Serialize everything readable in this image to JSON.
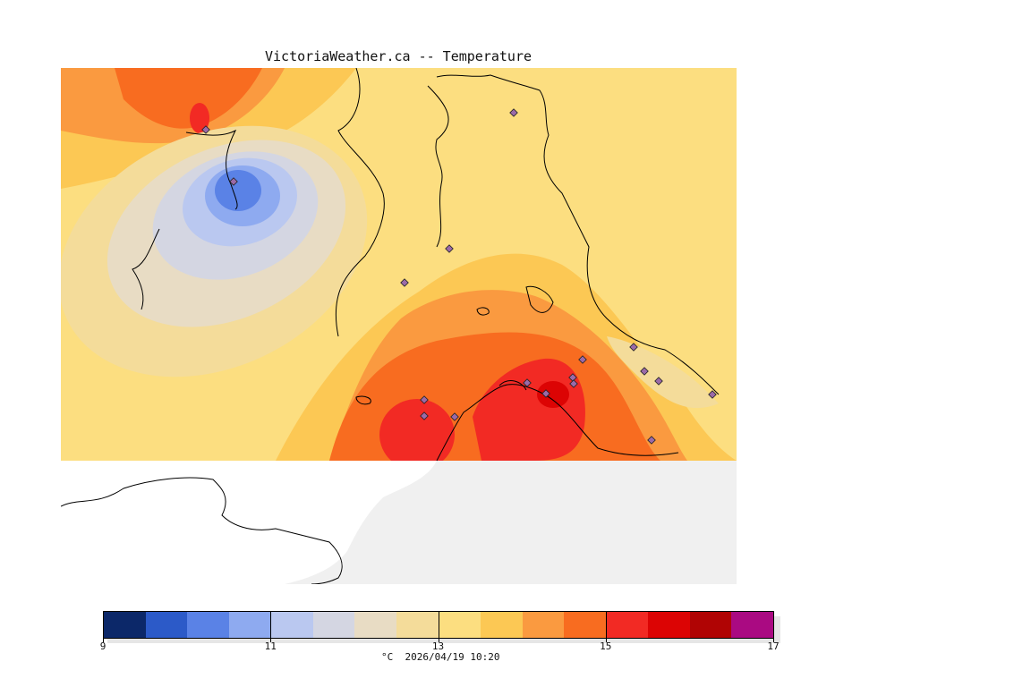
{
  "header": {
    "title": "VictoriaWeather.ca -- Temperature"
  },
  "colorbar": {
    "min": 9,
    "max": 17,
    "tick_labels": [
      "9",
      "11",
      "13",
      "15",
      "17"
    ],
    "colors": [
      "#0c2869",
      "#2c5ac8",
      "#5a82e6",
      "#8eaaf0",
      "#bac8f0",
      "#d4d6e2",
      "#e8dcc4",
      "#f4dc9a",
      "#fcde80",
      "#fcc854",
      "#fa9a40",
      "#f86c20",
      "#f22a24",
      "#dc0404",
      "#b00404",
      "#aa0a82"
    ],
    "unit": "°C",
    "timestamp": "2026/04/19 10:20"
  },
  "footer": {
    "caption": "°C  2026/04/19 10:20"
  },
  "map": {
    "background_color": "#f0f0f0",
    "land_no_data_color": "#ffffff",
    "stations": 18
  }
}
